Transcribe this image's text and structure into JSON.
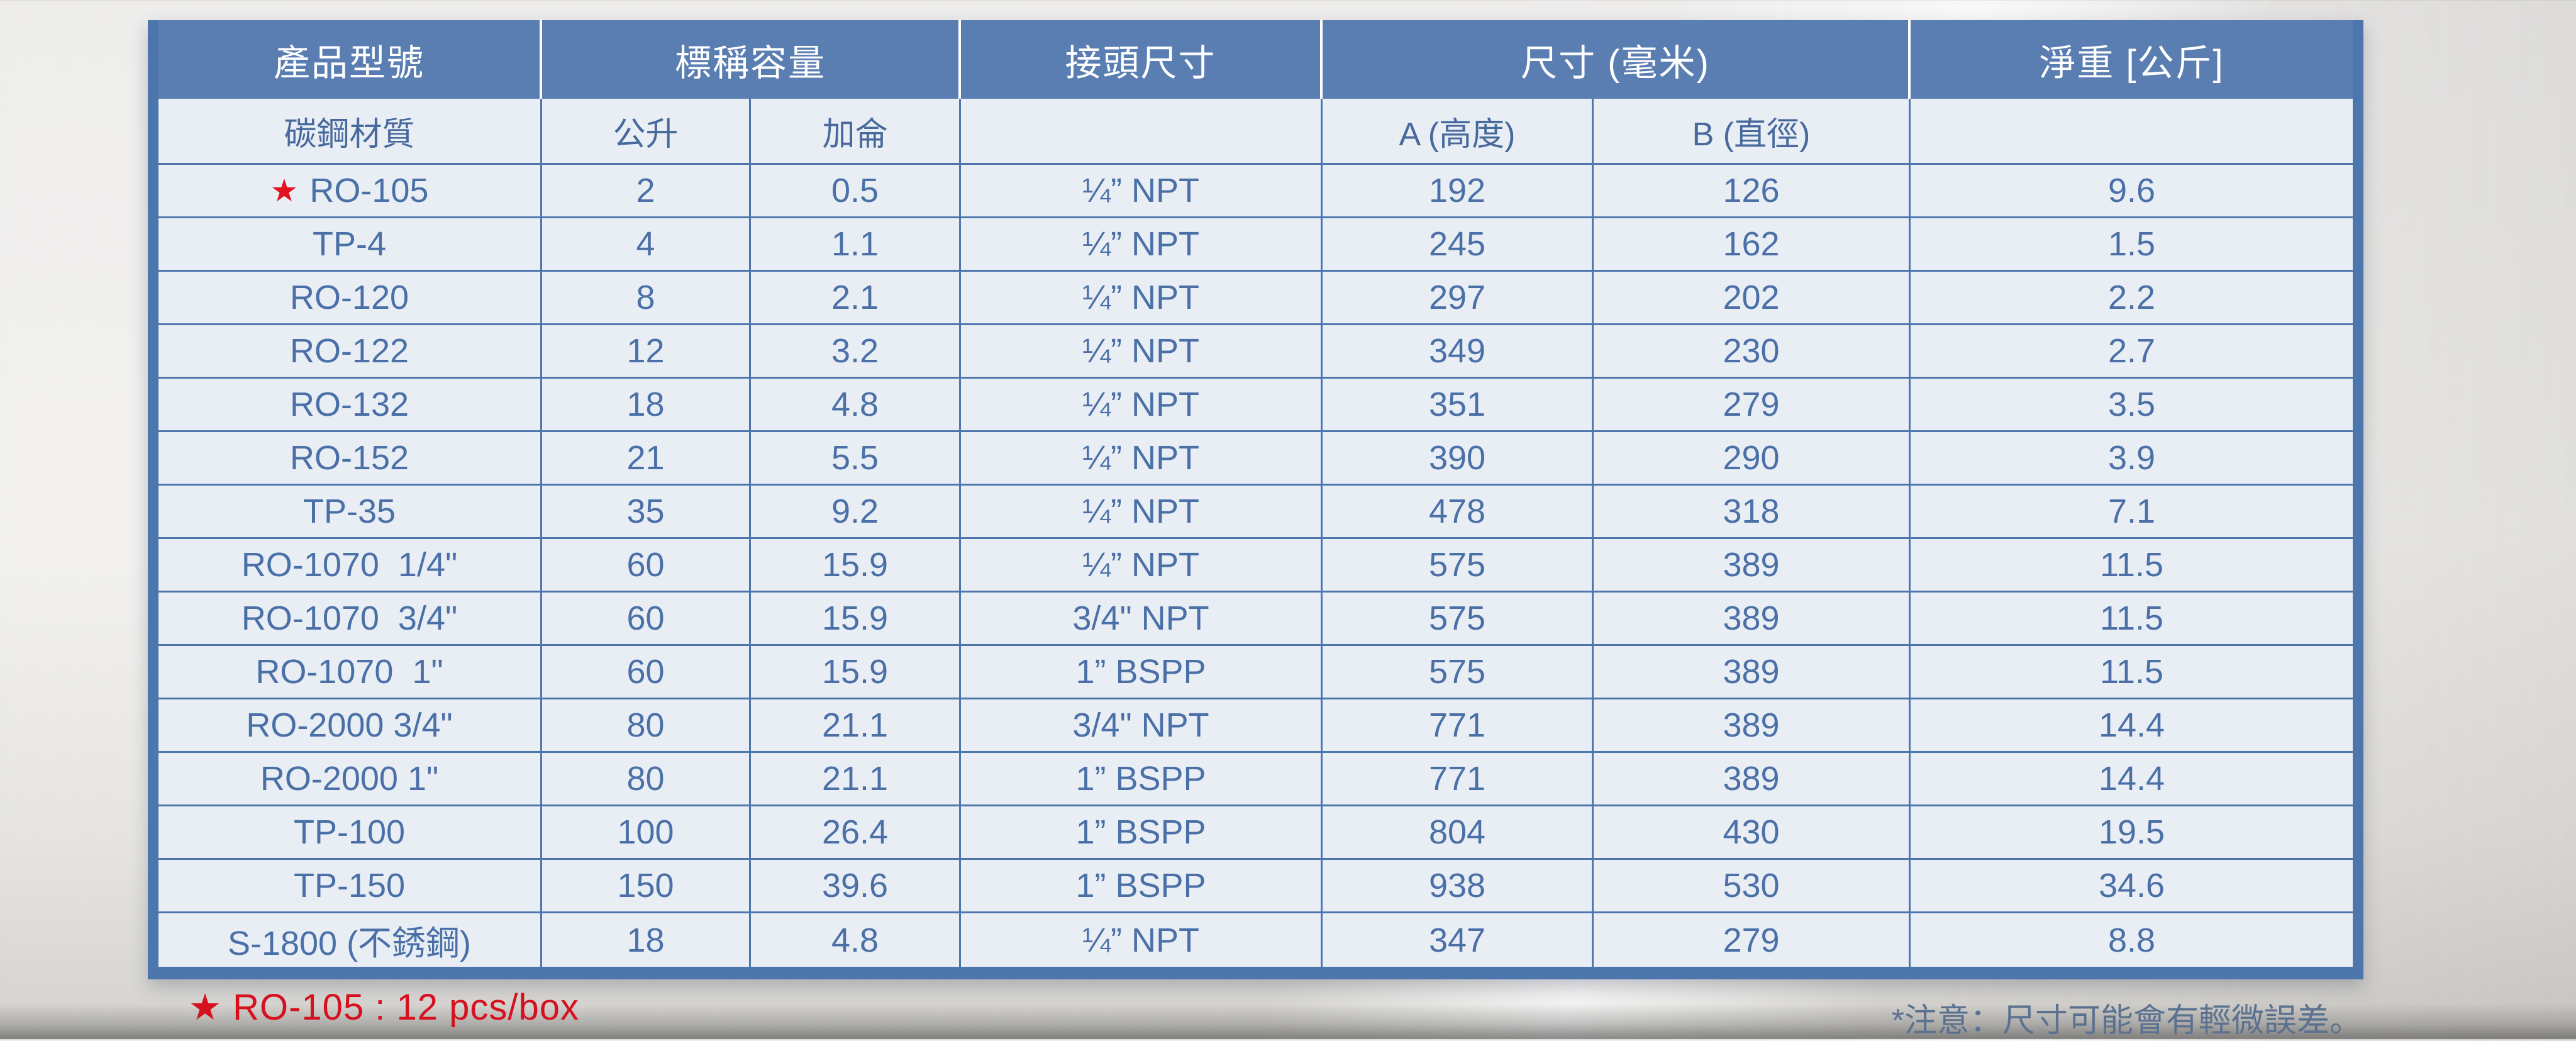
{
  "colors": {
    "header_bg": "#5a7eb2",
    "grid_line": "#4d76ad",
    "cell_bg": "#e9eef5",
    "cell_text": "#4a70a7",
    "header_text": "#ffffff",
    "accent_red": "#d6101e",
    "note_text": "#5b7190"
  },
  "table": {
    "header": {
      "product": "產品型號",
      "capacity": "標稱容量",
      "connector": "接頭尺寸",
      "dimensions": "尺寸 (毫米)",
      "weight": "淨重 [公斤]"
    },
    "subheader": {
      "material": "碳鋼材質",
      "liters": "公升",
      "gallons": "加侖",
      "height": "A (高度)",
      "diameter": "B (直徑)"
    },
    "rows": [
      {
        "star": "★",
        "model": "RO-105",
        "liters": "2",
        "gallons": "0.5",
        "connector": "¼” NPT",
        "height": "192",
        "diameter": "126",
        "weight": "9.6"
      },
      {
        "model": "TP-4",
        "liters": "4",
        "gallons": "1.1",
        "connector": "¼” NPT",
        "height": "245",
        "diameter": "162",
        "weight": "1.5"
      },
      {
        "model": "RO-120",
        "liters": "8",
        "gallons": "2.1",
        "connector": "¼” NPT",
        "height": "297",
        "diameter": "202",
        "weight": "2.2"
      },
      {
        "model": "RO-122",
        "liters": "12",
        "gallons": "3.2",
        "connector": "¼” NPT",
        "height": "349",
        "diameter": "230",
        "weight": "2.7"
      },
      {
        "model": "RO-132",
        "liters": "18",
        "gallons": "4.8",
        "connector": "¼” NPT",
        "height": "351",
        "diameter": "279",
        "weight": "3.5"
      },
      {
        "model": "RO-152",
        "liters": "21",
        "gallons": "5.5",
        "connector": "¼” NPT",
        "height": "390",
        "diameter": "290",
        "weight": "3.9"
      },
      {
        "model": "TP-35",
        "liters": "35",
        "gallons": "9.2",
        "connector": "¼” NPT",
        "height": "478",
        "diameter": "318",
        "weight": "7.1"
      },
      {
        "model": "RO-1070  1/4\"",
        "liters": "60",
        "gallons": "15.9",
        "connector": "¼” NPT",
        "height": "575",
        "diameter": "389",
        "weight": "11.5"
      },
      {
        "model": "RO-1070  3/4\"",
        "liters": "60",
        "gallons": "15.9",
        "connector": "3/4\" NPT",
        "height": "575",
        "diameter": "389",
        "weight": "11.5"
      },
      {
        "model": "RO-1070  1\"",
        "liters": "60",
        "gallons": "15.9",
        "connector": "1” BSPP",
        "height": "575",
        "diameter": "389",
        "weight": "11.5"
      },
      {
        "model": "RO-2000 3/4\"",
        "liters": "80",
        "gallons": "21.1",
        "connector": "3/4\" NPT",
        "height": "771",
        "diameter": "389",
        "weight": "14.4"
      },
      {
        "model": "RO-2000 1\"",
        "liters": "80",
        "gallons": "21.1",
        "connector": "1” BSPP",
        "height": "771",
        "diameter": "389",
        "weight": "14.4"
      },
      {
        "model": "TP-100",
        "liters": "100",
        "gallons": "26.4",
        "connector": "1” BSPP",
        "height": "804",
        "diameter": "430",
        "weight": "19.5"
      },
      {
        "model": "TP-150",
        "liters": "150",
        "gallons": "39.6",
        "connector": "1” BSPP",
        "height": "938",
        "diameter": "530",
        "weight": "34.6"
      },
      {
        "model": "S-1800 (不銹鋼)",
        "liters": "18",
        "gallons": "4.8",
        "connector": "¼” NPT",
        "height": "347",
        "diameter": "279",
        "weight": "8.8"
      }
    ]
  },
  "footer": {
    "packaging_note": "★ RO-105 : 12 pcs/box",
    "tolerance_note": "*注意：尺寸可能會有輕微誤差。"
  }
}
